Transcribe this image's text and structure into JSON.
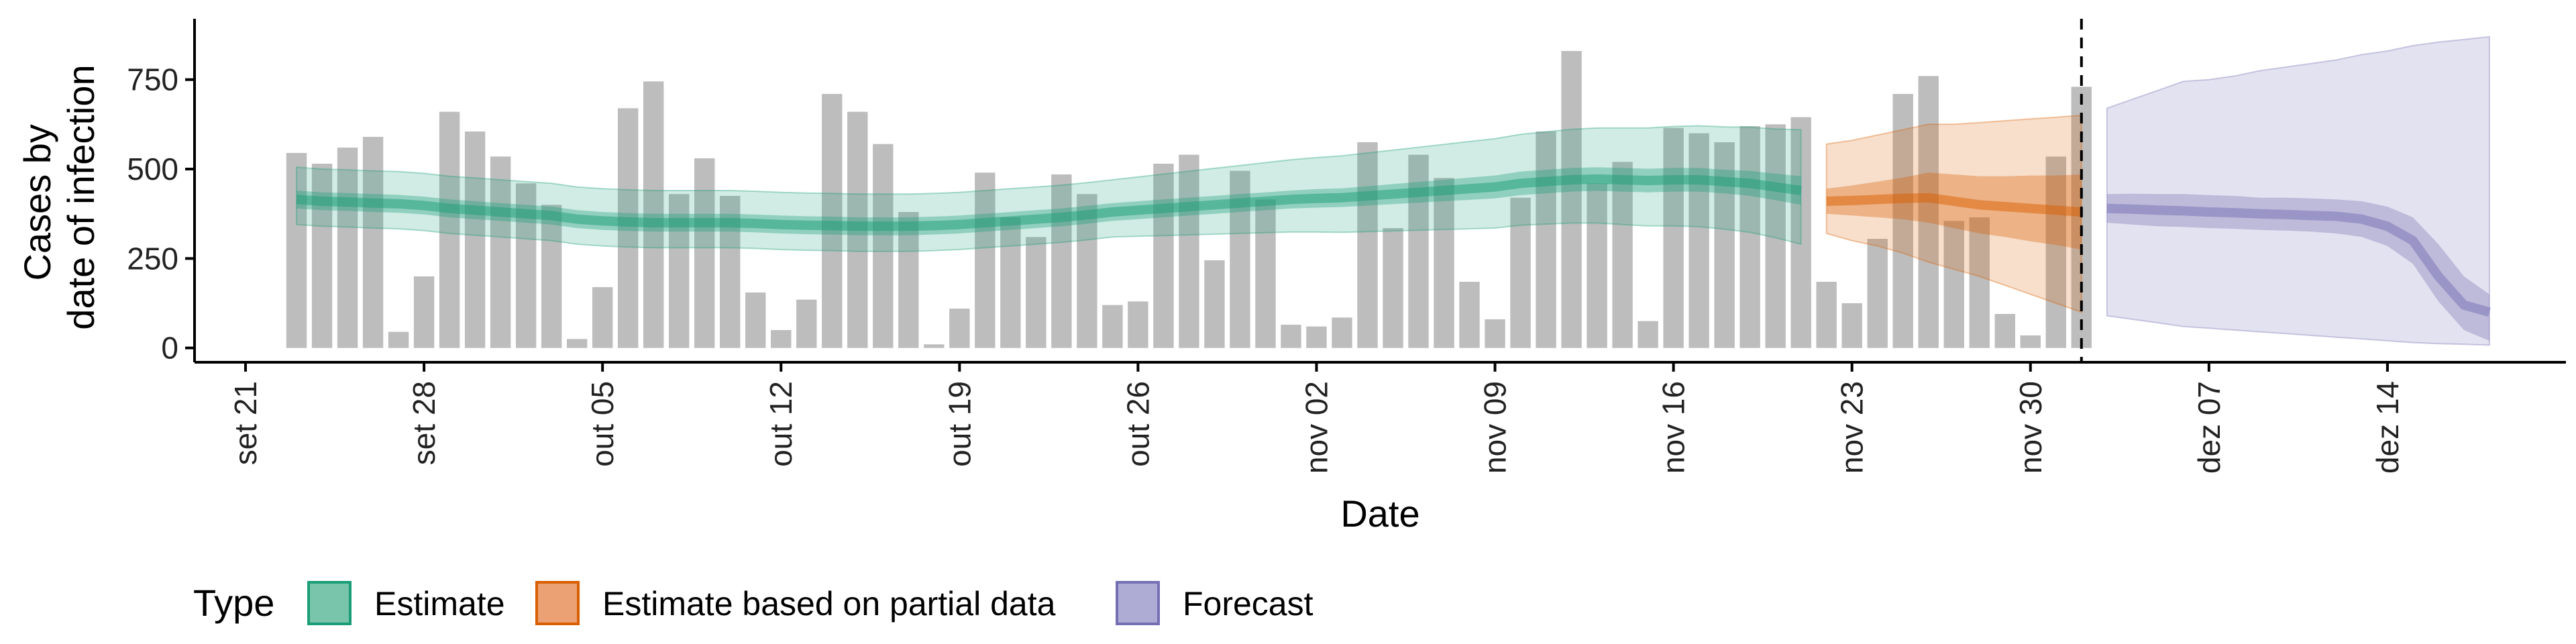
{
  "chart_data": {
    "type": "bar",
    "xlabel": "Date",
    "ylabel_lines": [
      "Cases by",
      "date of infection"
    ],
    "ylim": [
      -40,
      920
    ],
    "yticks": [
      0,
      250,
      500,
      750
    ],
    "xlim": [
      "2020-09-19",
      "2020-12-21"
    ],
    "xticks": [
      {
        "date": "2020-09-21",
        "label": "set 21"
      },
      {
        "date": "2020-09-28",
        "label": "set 28"
      },
      {
        "date": "2020-10-05",
        "label": "out 05"
      },
      {
        "date": "2020-10-12",
        "label": "out 12"
      },
      {
        "date": "2020-10-19",
        "label": "out 19"
      },
      {
        "date": "2020-10-26",
        "label": "out 26"
      },
      {
        "date": "2020-11-02",
        "label": "nov 02"
      },
      {
        "date": "2020-11-09",
        "label": "nov 09"
      },
      {
        "date": "2020-11-16",
        "label": "nov 16"
      },
      {
        "date": "2020-11-23",
        "label": "nov 23"
      },
      {
        "date": "2020-11-30",
        "label": "nov 30"
      },
      {
        "date": "2020-12-07",
        "label": "dez 07"
      },
      {
        "date": "2020-12-14",
        "label": "dez 14"
      }
    ],
    "bars": {
      "start_date": "2020-09-23",
      "color": "#bdbdbd",
      "values": [
        545,
        515,
        560,
        590,
        45,
        200,
        660,
        605,
        535,
        460,
        400,
        25,
        170,
        670,
        745,
        430,
        530,
        425,
        155,
        50,
        135,
        710,
        660,
        570,
        380,
        10,
        110,
        490,
        365,
        310,
        485,
        430,
        120,
        130,
        515,
        540,
        245,
        495,
        415,
        65,
        60,
        85,
        575,
        335,
        540,
        475,
        185,
        80,
        420,
        605,
        830,
        460,
        520,
        75,
        615,
        600,
        575,
        620,
        625,
        645,
        185,
        125,
        305,
        710,
        760,
        355,
        365,
        95,
        35,
        535,
        730
      ]
    },
    "forecast_line_date": "2020-12-02",
    "series": [
      {
        "name": "Estimate",
        "color": "#1b9e77",
        "start_date": "2020-09-23",
        "median": [
          415,
          410,
          408,
          405,
          403,
          398,
          390,
          385,
          380,
          375,
          370,
          360,
          355,
          352,
          350,
          350,
          350,
          350,
          348,
          345,
          343,
          342,
          340,
          340,
          340,
          342,
          345,
          350,
          355,
          360,
          365,
          372,
          380,
          385,
          390,
          395,
          400,
          405,
          410,
          415,
          418,
          420,
          425,
          430,
          435,
          440,
          445,
          450,
          460,
          465,
          470,
          472,
          470,
          468,
          470,
          470,
          465,
          460,
          450,
          440
        ],
        "inner": [
          [
            390,
            440
          ],
          [
            385,
            435
          ],
          [
            383,
            433
          ],
          [
            380,
            430
          ],
          [
            378,
            428
          ],
          [
            373,
            423
          ],
          [
            365,
            415
          ],
          [
            360,
            410
          ],
          [
            355,
            405
          ],
          [
            350,
            400
          ],
          [
            345,
            395
          ],
          [
            335,
            385
          ],
          [
            330,
            380
          ],
          [
            327,
            377
          ],
          [
            325,
            375
          ],
          [
            325,
            375
          ],
          [
            325,
            375
          ],
          [
            325,
            375
          ],
          [
            323,
            373
          ],
          [
            320,
            370
          ],
          [
            318,
            368
          ],
          [
            317,
            367
          ],
          [
            315,
            365
          ],
          [
            315,
            365
          ],
          [
            315,
            365
          ],
          [
            317,
            367
          ],
          [
            320,
            370
          ],
          [
            325,
            375
          ],
          [
            330,
            380
          ],
          [
            335,
            385
          ],
          [
            340,
            390
          ],
          [
            347,
            397
          ],
          [
            355,
            405
          ],
          [
            360,
            410
          ],
          [
            365,
            415
          ],
          [
            370,
            420
          ],
          [
            375,
            425
          ],
          [
            380,
            430
          ],
          [
            385,
            435
          ],
          [
            390,
            440
          ],
          [
            392,
            444
          ],
          [
            394,
            446
          ],
          [
            398,
            452
          ],
          [
            402,
            458
          ],
          [
            406,
            464
          ],
          [
            410,
            470
          ],
          [
            414,
            476
          ],
          [
            418,
            482
          ],
          [
            427,
            493
          ],
          [
            432,
            498
          ],
          [
            437,
            503
          ],
          [
            439,
            505
          ],
          [
            437,
            503
          ],
          [
            435,
            501
          ],
          [
            437,
            503
          ],
          [
            437,
            503
          ],
          [
            432,
            498
          ],
          [
            425,
            495
          ],
          [
            413,
            487
          ],
          [
            400,
            480
          ]
        ],
        "outer": [
          [
            345,
            505
          ],
          [
            340,
            500
          ],
          [
            338,
            498
          ],
          [
            335,
            495
          ],
          [
            333,
            493
          ],
          [
            328,
            488
          ],
          [
            320,
            480
          ],
          [
            315,
            475
          ],
          [
            310,
            470
          ],
          [
            305,
            465
          ],
          [
            300,
            460
          ],
          [
            290,
            450
          ],
          [
            285,
            445
          ],
          [
            282,
            442
          ],
          [
            280,
            440
          ],
          [
            280,
            440
          ],
          [
            280,
            440
          ],
          [
            280,
            440
          ],
          [
            278,
            438
          ],
          [
            275,
            435
          ],
          [
            273,
            433
          ],
          [
            272,
            432
          ],
          [
            270,
            430
          ],
          [
            270,
            430
          ],
          [
            270,
            430
          ],
          [
            272,
            432
          ],
          [
            275,
            435
          ],
          [
            280,
            440
          ],
          [
            285,
            445
          ],
          [
            290,
            450
          ],
          [
            295,
            455
          ],
          [
            302,
            462
          ],
          [
            310,
            470
          ],
          [
            312,
            478
          ],
          [
            314,
            486
          ],
          [
            316,
            494
          ],
          [
            318,
            502
          ],
          [
            320,
            510
          ],
          [
            322,
            518
          ],
          [
            324,
            526
          ],
          [
            324,
            532
          ],
          [
            323,
            537
          ],
          [
            325,
            545
          ],
          [
            327,
            553
          ],
          [
            329,
            561
          ],
          [
            331,
            569
          ],
          [
            333,
            577
          ],
          [
            335,
            585
          ],
          [
            343,
            597
          ],
          [
            346,
            604
          ],
          [
            349,
            611
          ],
          [
            349,
            615
          ],
          [
            345,
            615
          ],
          [
            341,
            615
          ],
          [
            341,
            619
          ],
          [
            339,
            621
          ],
          [
            332,
            618
          ],
          [
            323,
            617
          ],
          [
            308,
            612
          ],
          [
            290,
            610
          ]
        ]
      },
      {
        "name": "Estimate based on partial data",
        "color": "#d95f02",
        "start_date": "2020-11-22",
        "median": [
          410,
          412,
          415,
          418,
          420,
          410,
          400,
          395,
          390,
          385,
          380
        ],
        "inner": [
          [
            375,
            445
          ],
          [
            370,
            454
          ],
          [
            365,
            465
          ],
          [
            360,
            476
          ],
          [
            350,
            490
          ],
          [
            335,
            485
          ],
          [
            320,
            480
          ],
          [
            310,
            480
          ],
          [
            298,
            482
          ],
          [
            288,
            482
          ],
          [
            275,
            485
          ]
        ],
        "outer": [
          [
            320,
            570
          ],
          [
            300,
            580
          ],
          [
            285,
            595
          ],
          [
            265,
            610
          ],
          [
            240,
            625
          ],
          [
            220,
            625
          ],
          [
            200,
            630
          ],
          [
            175,
            635
          ],
          [
            150,
            640
          ],
          [
            125,
            645
          ],
          [
            100,
            650
          ]
        ]
      },
      {
        "name": "Forecast",
        "color": "#7570b3",
        "start_date": "2020-12-03",
        "median": [
          390,
          388,
          385,
          383,
          380,
          378,
          375,
          373,
          370,
          368,
          360,
          340,
          300,
          200,
          120,
          100
        ],
        "inner": [
          [
            350,
            430
          ],
          [
            345,
            431
          ],
          [
            340,
            430
          ],
          [
            338,
            430
          ],
          [
            335,
            427
          ],
          [
            333,
            425
          ],
          [
            330,
            420
          ],
          [
            328,
            420
          ],
          [
            325,
            418
          ],
          [
            320,
            415
          ],
          [
            310,
            410
          ],
          [
            285,
            395
          ],
          [
            235,
            365
          ],
          [
            130,
            290
          ],
          [
            50,
            200
          ],
          [
            20,
            150
          ]
        ],
        "outer": [
          [
            90,
            670
          ],
          [
            80,
            695
          ],
          [
            70,
            720
          ],
          [
            60,
            745
          ],
          [
            55,
            750
          ],
          [
            50,
            760
          ],
          [
            45,
            775
          ],
          [
            40,
            785
          ],
          [
            35,
            795
          ],
          [
            30,
            805
          ],
          [
            25,
            820
          ],
          [
            20,
            830
          ],
          [
            15,
            845
          ],
          [
            12,
            855
          ],
          [
            10,
            862
          ],
          [
            8,
            870
          ]
        ]
      }
    ],
    "legend": {
      "title": "Type",
      "placement": "bottom-left",
      "items": [
        {
          "label": "Estimate",
          "fill": "#78c5ab",
          "border": "#1b9e77"
        },
        {
          "label": "Estimate based on partial data",
          "fill": "#eba173",
          "border": "#d95f02"
        },
        {
          "label": "Forecast",
          "fill": "#aeabd4",
          "border": "#7570b3"
        }
      ]
    },
    "grid": false
  }
}
